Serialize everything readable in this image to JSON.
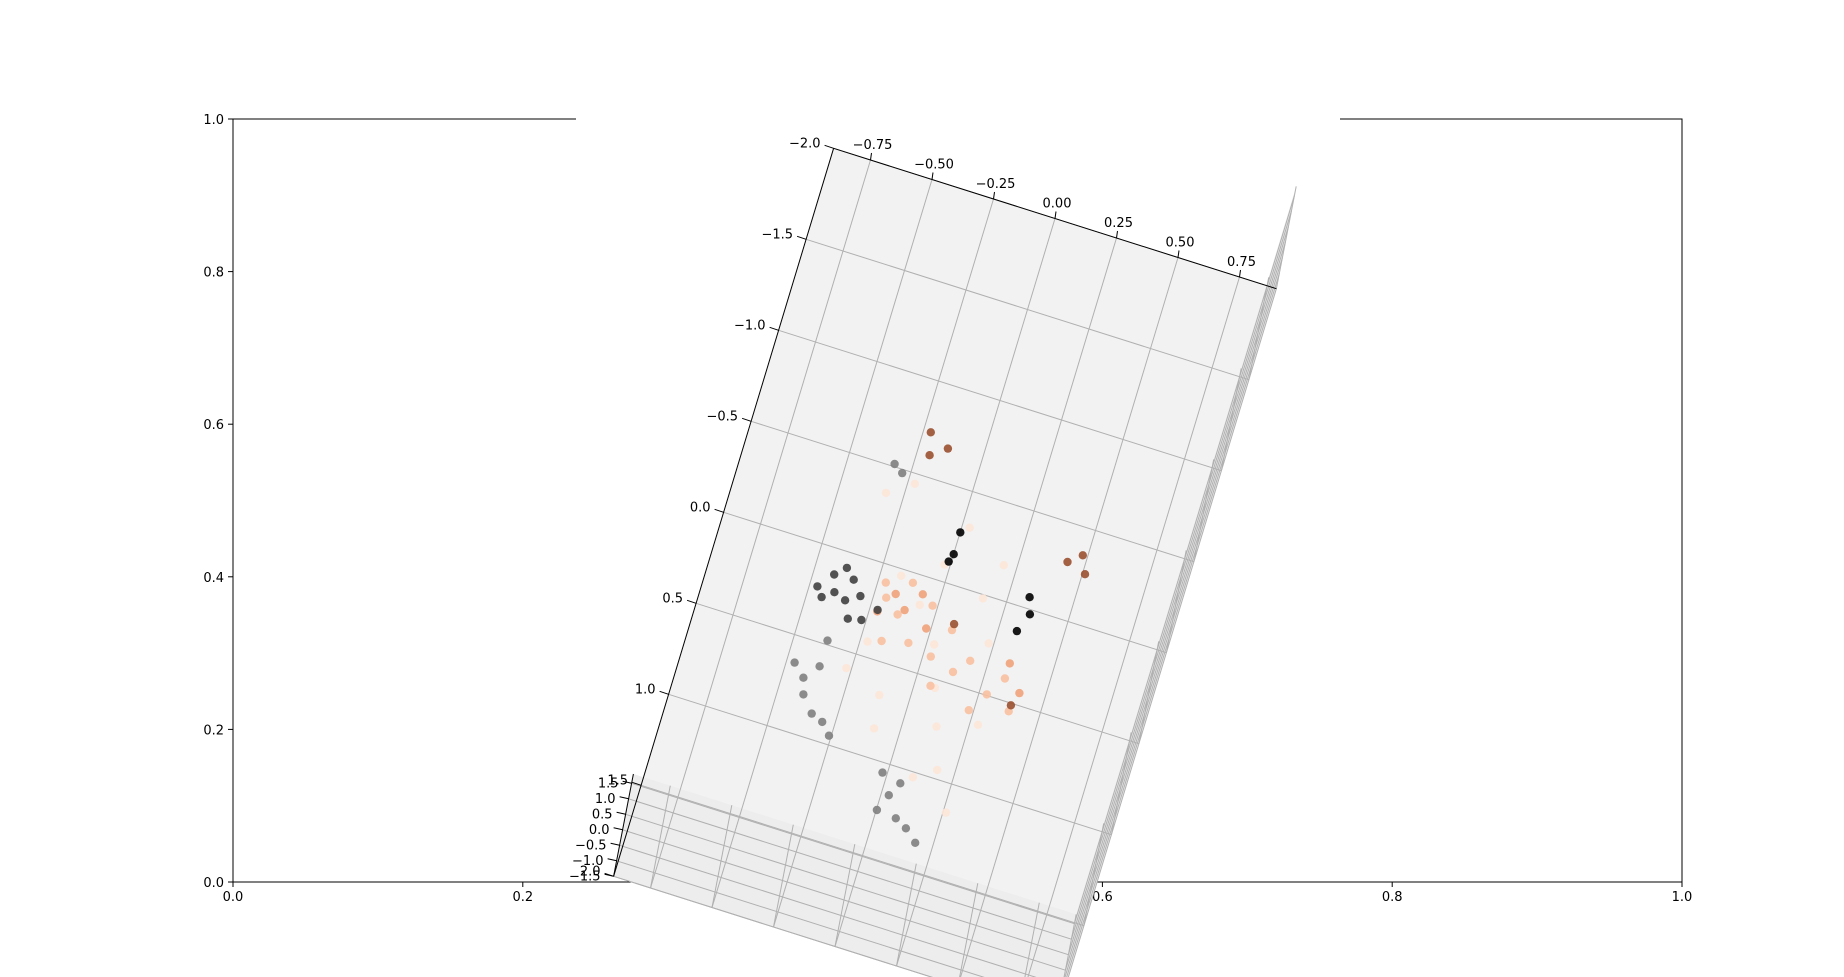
{
  "chart_data": [
    {
      "type": "axes-2d",
      "title": "",
      "xlabel": "",
      "ylabel": "",
      "xlim": [
        0.0,
        1.0
      ],
      "ylim": [
        0.0,
        1.0
      ],
      "x_ticks": [
        "0.0",
        "0.2",
        "0.4",
        "0.6",
        "0.8",
        "1.0"
      ],
      "y_ticks": [
        "0.0",
        "0.2",
        "0.4",
        "0.6",
        "0.8",
        "1.0"
      ],
      "grid": false
    },
    {
      "type": "scatter",
      "projection": "3d",
      "title": "",
      "grid": true,
      "x_axis": {
        "label": "",
        "range": [
          -0.9,
          0.9
        ],
        "ticks": [
          "−0.75",
          "−0.50",
          "−0.25",
          "0.00",
          "0.25",
          "0.50",
          "0.75"
        ]
      },
      "y_axis": {
        "label": "",
        "range": [
          -2.0,
          2.0
        ],
        "ticks": [
          "−2.0",
          "−1.5",
          "−1.0",
          "−0.5",
          "0.0",
          "0.5",
          "1.0",
          "1.5",
          "2.0"
        ]
      },
      "z_axis": {
        "label": "",
        "range": [
          -1.5,
          1.8
        ],
        "ticks": [
          "−1.5",
          "−1.0",
          "−0.5",
          "0.0",
          "0.5",
          "1.0",
          "1.5"
        ]
      },
      "colormap": "diverging: black-grey-white-peach-brown",
      "colors": {
        "black": "#000000",
        "dark_grey": "#404040",
        "grey": "#7f7f7f",
        "light": "#fde5d8",
        "peach": "#f9c0a0",
        "salmon": "#f0a27a",
        "brown": "#9a5030",
        "pane": "#f2f2f2",
        "grid": "#b0b0b0"
      },
      "points": [
        {
          "x": 0.02,
          "y": -0.02,
          "z": 0.05,
          "c": "black"
        },
        {
          "x": 0.02,
          "y": 0.1,
          "z": 0.05,
          "c": "black"
        },
        {
          "x": 0.35,
          "y": 0.2,
          "z": 0.08,
          "c": "black"
        },
        {
          "x": 0.37,
          "y": 0.28,
          "z": 0.05,
          "c": "black"
        },
        {
          "x": 0.34,
          "y": 0.38,
          "z": 0.02,
          "c": "black"
        },
        {
          "x": 0.01,
          "y": 0.15,
          "z": 0.08,
          "c": "black"
        },
        {
          "x": -0.4,
          "y": 0.4,
          "z": 0.1,
          "c": "dark_grey"
        },
        {
          "x": -0.38,
          "y": 0.48,
          "z": 0.05,
          "c": "dark_grey"
        },
        {
          "x": -0.33,
          "y": 0.52,
          "z": 0.15,
          "c": "dark_grey"
        },
        {
          "x": -0.28,
          "y": 0.45,
          "z": 0.0,
          "c": "dark_grey"
        },
        {
          "x": -0.42,
          "y": 0.55,
          "z": 0.2,
          "c": "dark_grey"
        },
        {
          "x": -0.3,
          "y": 0.6,
          "z": 0.1,
          "c": "dark_grey"
        },
        {
          "x": -0.36,
          "y": 0.35,
          "z": 0.12,
          "c": "dark_grey"
        },
        {
          "x": -0.25,
          "y": 0.56,
          "z": -0.05,
          "c": "dark_grey"
        },
        {
          "x": -0.45,
          "y": 0.47,
          "z": 0.0,
          "c": "dark_grey"
        },
        {
          "x": -0.32,
          "y": 0.42,
          "z": 0.25,
          "c": "dark_grey"
        },
        {
          "x": -0.2,
          "y": 0.5,
          "z": 0.05,
          "c": "dark_grey"
        },
        {
          "x": -0.4,
          "y": 0.95,
          "z": 0.0,
          "c": "grey"
        },
        {
          "x": -0.38,
          "y": 1.05,
          "z": 0.1,
          "c": "grey"
        },
        {
          "x": -0.33,
          "y": 1.1,
          "z": -0.1,
          "c": "grey"
        },
        {
          "x": -0.28,
          "y": 1.15,
          "z": 0.05,
          "c": "grey"
        },
        {
          "x": -0.35,
          "y": 0.9,
          "z": 0.2,
          "c": "grey"
        },
        {
          "x": -0.45,
          "y": 0.88,
          "z": -0.05,
          "c": "grey"
        },
        {
          "x": -0.24,
          "y": 1.2,
          "z": 0.0,
          "c": "grey"
        },
        {
          "x": 0.0,
          "y": 1.3,
          "z": 0.0,
          "c": "grey"
        },
        {
          "x": 0.05,
          "y": 1.42,
          "z": 0.1,
          "c": "grey"
        },
        {
          "x": 0.1,
          "y": 1.5,
          "z": -0.05,
          "c": "grey"
        },
        {
          "x": 0.15,
          "y": 1.55,
          "z": 0.05,
          "c": "grey"
        },
        {
          "x": 0.08,
          "y": 1.35,
          "z": 0.15,
          "c": "grey"
        },
        {
          "x": 0.02,
          "y": 1.48,
          "z": -0.1,
          "c": "grey"
        },
        {
          "x": 0.2,
          "y": 1.6,
          "z": 0.0,
          "c": "grey"
        },
        {
          "x": -0.3,
          "y": -0.25,
          "z": 0.1,
          "c": "grey"
        },
        {
          "x": -0.26,
          "y": -0.2,
          "z": 0.2,
          "c": "grey"
        },
        {
          "x": -0.35,
          "y": 0.75,
          "z": 0.15,
          "c": "grey"
        },
        {
          "x": -0.15,
          "y": 0.3,
          "z": 0.1,
          "c": "light"
        },
        {
          "x": -0.05,
          "y": 0.4,
          "z": 0.0,
          "c": "light"
        },
        {
          "x": 0.05,
          "y": 0.6,
          "z": 0.15,
          "c": "light"
        },
        {
          "x": 0.1,
          "y": 0.8,
          "z": 0.05,
          "c": "light"
        },
        {
          "x": -0.1,
          "y": 0.9,
          "z": -0.1,
          "c": "light"
        },
        {
          "x": 0.15,
          "y": 1.0,
          "z": 0.1,
          "c": "light"
        },
        {
          "x": 0.2,
          "y": 1.2,
          "z": 0.0,
          "c": "light"
        },
        {
          "x": -0.2,
          "y": 0.7,
          "z": 0.2,
          "c": "light"
        },
        {
          "x": 0.25,
          "y": 0.5,
          "z": 0.1,
          "c": "light"
        },
        {
          "x": 0.3,
          "y": 0.9,
          "z": -0.05,
          "c": "light"
        },
        {
          "x": -0.3,
          "y": -0.1,
          "z": 0.05,
          "c": "light"
        },
        {
          "x": -0.2,
          "y": -0.15,
          "z": 0.3,
          "c": "light"
        },
        {
          "x": 0.0,
          "y": 0.2,
          "z": 0.25,
          "c": "light"
        },
        {
          "x": 0.12,
          "y": 1.3,
          "z": 0.15,
          "c": "light"
        },
        {
          "x": 0.18,
          "y": 0.3,
          "z": 0.2,
          "c": "light"
        },
        {
          "x": -0.08,
          "y": 1.1,
          "z": 0.05,
          "c": "light"
        },
        {
          "x": 0.28,
          "y": 1.4,
          "z": 0.0,
          "c": "light"
        },
        {
          "x": -0.25,
          "y": 0.85,
          "z": 0.1,
          "c": "light"
        },
        {
          "x": 0.05,
          "y": -0.05,
          "z": 0.1,
          "c": "light"
        },
        {
          "x": 0.22,
          "y": 0.1,
          "z": 0.2,
          "c": "light"
        },
        {
          "x": -0.2,
          "y": 0.35,
          "z": 0.05,
          "c": "peach"
        },
        {
          "x": -0.12,
          "y": 0.5,
          "z": 0.1,
          "c": "peach"
        },
        {
          "x": -0.05,
          "y": 0.6,
          "z": -0.05,
          "c": "peach"
        },
        {
          "x": 0.05,
          "y": 0.65,
          "z": 0.05,
          "c": "peach"
        },
        {
          "x": 0.15,
          "y": 0.7,
          "z": 0.1,
          "c": "peach"
        },
        {
          "x": 0.2,
          "y": 0.6,
          "z": 0.0,
          "c": "peach"
        },
        {
          "x": -0.18,
          "y": 0.45,
          "z": 0.2,
          "c": "peach"
        },
        {
          "x": 0.1,
          "y": 0.5,
          "z": 0.15,
          "c": "peach"
        },
        {
          "x": 0.3,
          "y": 0.75,
          "z": 0.05,
          "c": "peach"
        },
        {
          "x": 0.35,
          "y": 0.65,
          "z": 0.1,
          "c": "peach"
        },
        {
          "x": -0.1,
          "y": 0.3,
          "z": 0.0,
          "c": "peach"
        },
        {
          "x": 0.0,
          "y": 0.4,
          "z": 0.1,
          "c": "peach"
        },
        {
          "x": 0.25,
          "y": 0.85,
          "z": 0.0,
          "c": "peach"
        },
        {
          "x": 0.4,
          "y": 0.8,
          "z": 0.05,
          "c": "peach"
        },
        {
          "x": -0.15,
          "y": 0.65,
          "z": 0.05,
          "c": "peach"
        },
        {
          "x": 0.08,
          "y": 0.78,
          "z": -0.05,
          "c": "peach"
        },
        {
          "x": -0.15,
          "y": 0.4,
          "z": 0.1,
          "c": "salmon"
        },
        {
          "x": -0.1,
          "y": 0.45,
          "z": 0.0,
          "c": "salmon"
        },
        {
          "x": -0.05,
          "y": 0.35,
          "z": 0.05,
          "c": "salmon"
        },
        {
          "x": 0.0,
          "y": 0.5,
          "z": -0.05,
          "c": "salmon"
        },
        {
          "x": -0.2,
          "y": 0.5,
          "z": 0.0,
          "c": "salmon"
        },
        {
          "x": 0.35,
          "y": 0.55,
          "z": 0.0,
          "c": "salmon"
        },
        {
          "x": 0.42,
          "y": 0.7,
          "z": 0.1,
          "c": "salmon"
        },
        {
          "x": -0.2,
          "y": -0.45,
          "z": 0.2,
          "c": "brown"
        },
        {
          "x": -0.18,
          "y": -0.35,
          "z": 0.1,
          "c": "brown"
        },
        {
          "x": -0.12,
          "y": -0.42,
          "z": 0.05,
          "c": "brown"
        },
        {
          "x": 0.45,
          "y": -0.05,
          "z": 0.0,
          "c": "brown"
        },
        {
          "x": 0.5,
          "y": -0.1,
          "z": 0.05,
          "c": "brown"
        },
        {
          "x": 0.53,
          "y": 0.0,
          "z": 0.1,
          "c": "brown"
        },
        {
          "x": 0.4,
          "y": 0.75,
          "z": -0.05,
          "c": "brown"
        },
        {
          "x": 0.1,
          "y": 0.45,
          "z": 0.05,
          "c": "brown"
        }
      ]
    }
  ]
}
